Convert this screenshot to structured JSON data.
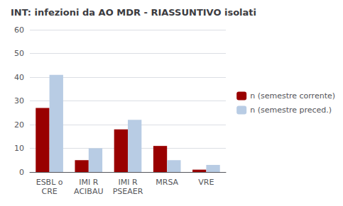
{
  "chart_data": {
    "type": "bar",
    "title": "INT: infezioni da AO MDR - RIASSUNTIVO isolati",
    "categories": [
      "ESBL o\nCRE",
      "IMI R\nACIBAU",
      "IMI R\nPSEAER",
      "MRSA",
      "VRE"
    ],
    "series": [
      {
        "name": "n (semestre corrente)",
        "color": "#990000",
        "values": [
          27,
          5,
          18,
          11,
          1
        ]
      },
      {
        "name": "n (semestre preced.)",
        "color": "#b8cce4",
        "values": [
          41,
          10,
          22,
          5,
          3
        ]
      }
    ],
    "ylim": [
      0,
      60
    ],
    "yticks": [
      0,
      10,
      20,
      30,
      40,
      50,
      60
    ],
    "grid": true,
    "legend": "right"
  }
}
